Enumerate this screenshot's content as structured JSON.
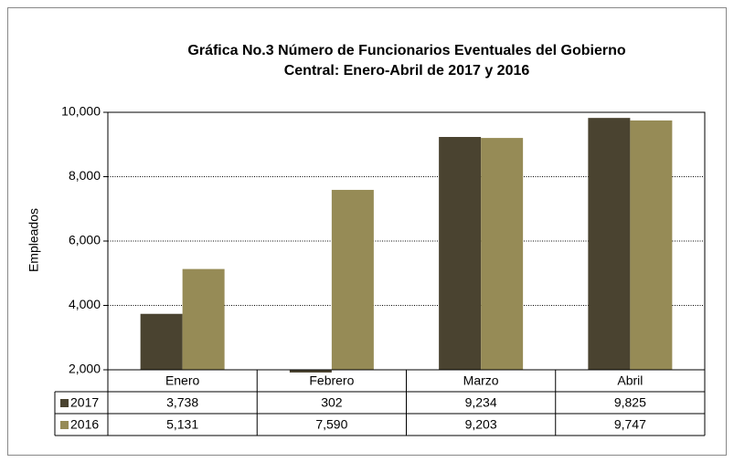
{
  "chart_data": {
    "type": "bar",
    "title": [
      "Gráfica No.3 Número de Funcionarios Eventuales del Gobierno",
      "Central: Enero-Abril  de 2017 y 2016"
    ],
    "y_label": "Empleados",
    "categories": [
      "Enero",
      "Febrero",
      "Marzo",
      "Abril"
    ],
    "series": [
      {
        "name": "2017",
        "color": "#4a4330",
        "values": [
          3738,
          302,
          9234,
          9825
        ],
        "value_labels": [
          "3,738",
          "302",
          "9,234",
          "9,825"
        ]
      },
      {
        "name": "2016",
        "color": "#968b56",
        "values": [
          5131,
          7590,
          9203,
          9747
        ],
        "value_labels": [
          "5,131",
          "7,590",
          "9,203",
          "9,747"
        ]
      }
    ],
    "ylim": [
      2000,
      10000
    ],
    "yticks": [
      {
        "value": 2000,
        "label": "2,000"
      },
      {
        "value": 4000,
        "label": "4,000"
      },
      {
        "value": 6000,
        "label": "6,000"
      },
      {
        "value": 8000,
        "label": "8,000"
      },
      {
        "value": 10000,
        "label": "10,000"
      }
    ],
    "grid": true
  }
}
